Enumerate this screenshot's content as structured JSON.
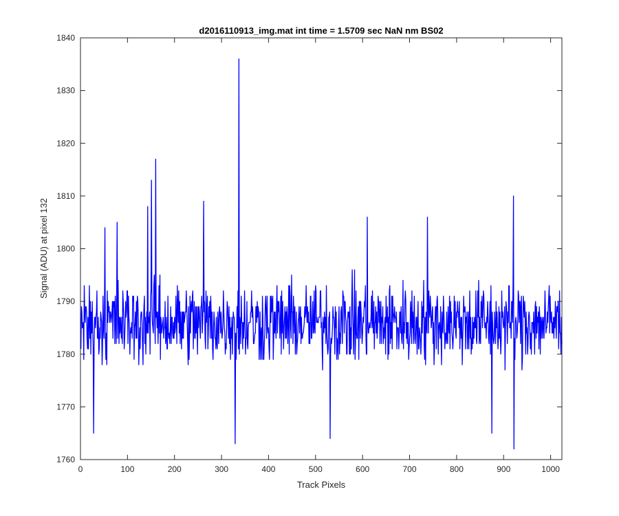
{
  "chart_data": {
    "type": "line",
    "title": "d2016110913_img.mat int time = 1.5709 sec  NaN nm BS02",
    "xlabel": "Track Pixels",
    "ylabel": "Signal (ADU) at pixel 132",
    "xlim": [
      0,
      1024
    ],
    "ylim": [
      1760,
      1840
    ],
    "xticks": [
      0,
      100,
      200,
      300,
      400,
      500,
      600,
      700,
      800,
      900,
      1000
    ],
    "yticks": [
      1760,
      1770,
      1780,
      1790,
      1800,
      1810,
      1820,
      1830,
      1840
    ],
    "grid": false,
    "series": [
      {
        "color": "#0000ff",
        "x_start": 1,
        "x_step": 1,
        "baseline": 1786,
        "noise_amplitude": 7,
        "notable_points": [
          {
            "x": 337,
            "y": 1836
          },
          {
            "x": 160,
            "y": 1817
          },
          {
            "x": 151,
            "y": 1813
          },
          {
            "x": 921,
            "y": 1810
          },
          {
            "x": 262,
            "y": 1809
          },
          {
            "x": 143,
            "y": 1808
          },
          {
            "x": 329,
            "y": 1763
          },
          {
            "x": 922,
            "y": 1762
          },
          {
            "x": 531,
            "y": 1764
          },
          {
            "x": 28,
            "y": 1765
          },
          {
            "x": 875,
            "y": 1765
          },
          {
            "x": 52,
            "y": 1804
          },
          {
            "x": 78,
            "y": 1805
          },
          {
            "x": 610,
            "y": 1806
          },
          {
            "x": 738,
            "y": 1806
          }
        ]
      }
    ]
  }
}
